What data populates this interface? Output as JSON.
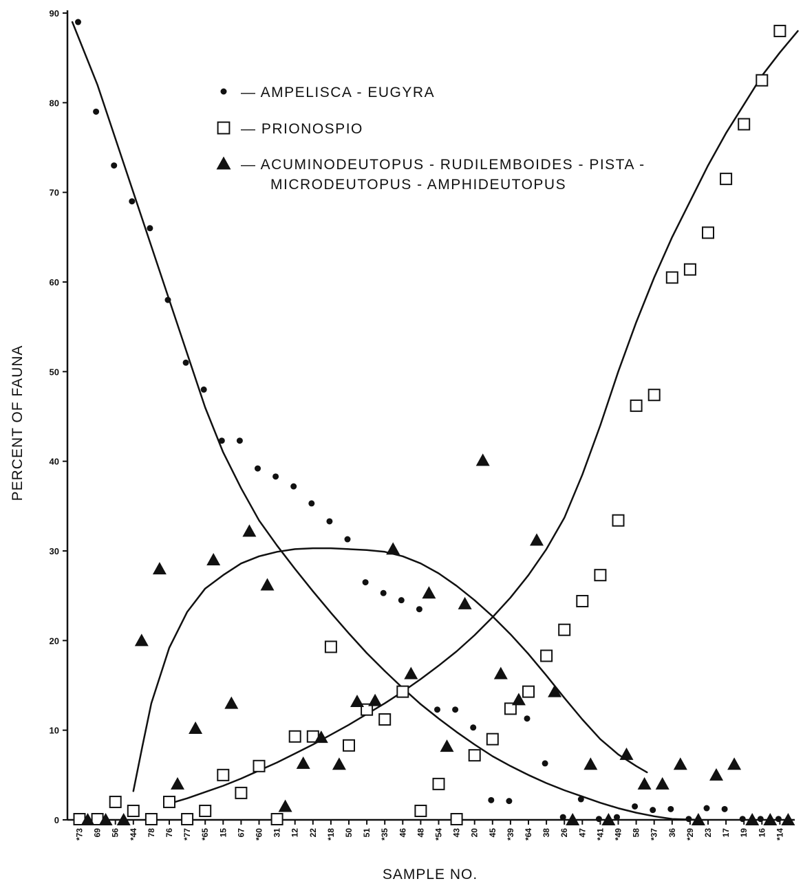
{
  "chart_data": {
    "type": "scatter",
    "xlabel": "SAMPLE NO.",
    "ylabel": "PERCENT OF FAUNA",
    "ylim": [
      0,
      90
    ],
    "yticks": [
      0,
      10,
      20,
      30,
      40,
      50,
      60,
      70,
      80,
      90
    ],
    "grid": false,
    "legend_position": "top-center",
    "categories": [
      "*73",
      "69",
      "56",
      "*44",
      "78",
      "76",
      "*77",
      "*65",
      "15",
      "67",
      "*60",
      "31",
      "12",
      "22",
      "*18",
      "50",
      "51",
      "*35",
      "46",
      "48",
      "*54",
      "43",
      "20",
      "45",
      "*39",
      "*64",
      "38",
      "26",
      "47",
      "*41",
      "*49",
      "58",
      "*37",
      "36",
      "*29",
      "23",
      "17",
      "19",
      "16",
      "*14"
    ],
    "series": [
      {
        "name": "AMPELISCA - EUGYRA",
        "marker": "dot",
        "values": [
          89,
          79,
          73,
          69,
          66,
          58,
          51,
          48,
          42.3,
          42.3,
          39.2,
          38.3,
          37.2,
          35.3,
          33.3,
          31.3,
          26.5,
          25.3,
          24.5,
          23.5,
          12.3,
          12.3,
          10.3,
          2.2,
          2.1,
          11.3,
          6.3,
          0.3,
          2.3,
          0.1,
          0.3,
          1.5,
          1.1,
          1.2,
          0.1,
          1.3,
          1.2,
          0.1,
          0.1,
          0.1
        ]
      },
      {
        "name": "PRIONOSPIO",
        "marker": "square",
        "values": [
          0,
          0,
          2,
          1,
          0,
          2,
          0,
          1,
          5,
          3,
          6,
          0,
          9.3,
          9.3,
          19.3,
          8.3,
          12.3,
          11.2,
          14.3,
          1,
          4,
          0,
          7.2,
          9,
          12.4,
          14.3,
          18.3,
          21.2,
          24.4,
          27.3,
          33.4,
          46.2,
          47.4,
          60.5,
          61.4,
          65.5,
          71.5,
          77.6,
          82.5,
          88
        ]
      },
      {
        "name": "ACUMINODEUTOPUS - RUDILEMBOIDES - PISTA - MICRODEUTOPUS - AMPHIDEUTOPUS",
        "marker": "triangle",
        "values": [
          0,
          0,
          0,
          20,
          28,
          4,
          10.2,
          29,
          13,
          32.2,
          26.2,
          1.5,
          6.3,
          9.2,
          6.2,
          13.2,
          13.3,
          30.2,
          16.3,
          25.3,
          8.2,
          24.1,
          40.1,
          16.3,
          13.4,
          31.2,
          14.3,
          0,
          6.2,
          0,
          7.3,
          4,
          4,
          6.2,
          0,
          5,
          6.2,
          0,
          0,
          0
        ]
      }
    ],
    "fit_curves": [
      {
        "series": "AMPELISCA - EUGYRA",
        "x": [
          -0.4,
          1,
          2,
          3,
          4,
          5,
          6,
          7,
          8,
          9,
          10,
          11,
          12,
          13,
          14,
          15,
          16,
          17,
          18,
          19,
          20,
          21,
          22,
          23,
          24,
          25,
          26,
          27,
          28,
          29,
          30,
          31,
          32,
          33,
          34.5
        ],
        "y": [
          89,
          82,
          76,
          70,
          64,
          58,
          52,
          46,
          41,
          37,
          33.4,
          30.6,
          28,
          25.5,
          23.1,
          20.8,
          18.6,
          16.6,
          14.7,
          12.9,
          11.3,
          9.8,
          8.4,
          7.1,
          6,
          5,
          4.1,
          3.3,
          2.6,
          1.9,
          1.3,
          0.8,
          0.4,
          0.1,
          0
        ]
      },
      {
        "series": "PRIONOSPIO",
        "x": [
          5,
          6,
          7,
          8,
          9,
          10,
          11,
          12,
          13,
          14,
          15,
          16,
          17,
          18,
          19,
          20,
          21,
          22,
          23,
          24,
          25,
          26,
          27,
          28,
          29,
          30,
          31,
          32,
          33,
          34,
          35,
          36,
          37,
          38,
          39,
          40
        ],
        "y": [
          1.8,
          2.4,
          3.1,
          3.8,
          4.6,
          5.5,
          6.4,
          7.4,
          8.4,
          9.5,
          10.6,
          11.8,
          13,
          14.3,
          15.7,
          17.2,
          18.8,
          20.6,
          22.6,
          24.8,
          27.3,
          30.2,
          33.7,
          38.5,
          44,
          50,
          55.5,
          60.5,
          65,
          69,
          73,
          76.6,
          79.8,
          83,
          85.6,
          88
        ]
      },
      {
        "series": "ACUMINODEUTOPUS - RUDILEMBOIDES - PISTA - MICRODEUTOPUS - AMPHIDEUTOPUS",
        "x": [
          3,
          3.5,
          4,
          5,
          6,
          7,
          8,
          9,
          10,
          11,
          12,
          13,
          14,
          15,
          16,
          17,
          18,
          19,
          20,
          21,
          22,
          23,
          24,
          25,
          26,
          27,
          28,
          29,
          30,
          31,
          31.6
        ],
        "y": [
          3.2,
          8.2,
          13,
          19.2,
          23.2,
          25.8,
          27.3,
          28.6,
          29.4,
          29.9,
          30.2,
          30.3,
          30.3,
          30.2,
          30.1,
          29.9,
          29.4,
          28.6,
          27.5,
          26.1,
          24.5,
          22.7,
          20.7,
          18.5,
          16.1,
          13.6,
          11.2,
          9,
          7.3,
          6,
          5.3
        ]
      }
    ],
    "legend": [
      {
        "marker": "dot",
        "text": "— AMPELISCA - EUGYRA"
      },
      {
        "marker": "square",
        "text": "— PRIONOSPIO"
      },
      {
        "marker": "triangle",
        "text": "— ACUMINODEUTOPUS - RUDILEMBOIDES - PISTA -",
        "text2": "MICRODEUTOPUS - AMPHIDEUTOPUS"
      }
    ]
  }
}
